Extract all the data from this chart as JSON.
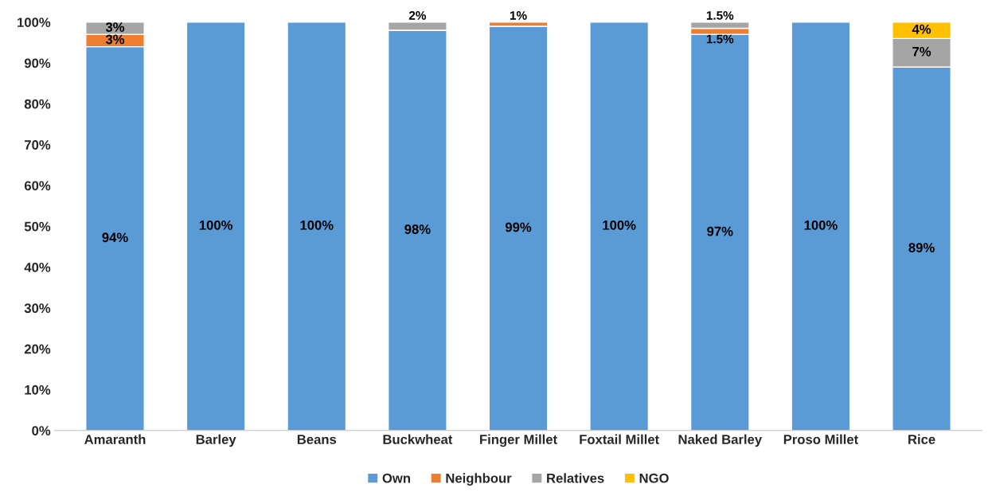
{
  "chart_data": {
    "type": "bar",
    "stacked": true,
    "categories": [
      "Amaranth",
      "Barley",
      "Beans",
      "Buckwheat",
      "Finger Millet",
      "Foxtail Millet",
      "Naked Barley",
      "Proso Millet",
      "Rice"
    ],
    "series": [
      {
        "name": "Own",
        "color": "#5b9bd5",
        "values": [
          94,
          100,
          100,
          98,
          99,
          100,
          97,
          100,
          89
        ],
        "value_labels": [
          "94%",
          "100%",
          "100%",
          "98%",
          "99%",
          "100%",
          "97%",
          "100%",
          "89%"
        ]
      },
      {
        "name": "Neighbour",
        "color": "#ed7d31",
        "values": [
          3,
          null,
          null,
          null,
          1,
          null,
          1.5,
          null,
          null
        ],
        "value_labels": [
          "3%",
          null,
          null,
          null,
          "1%",
          null,
          "1.5%",
          null,
          null
        ]
      },
      {
        "name": "Relatives",
        "color": "#a5a5a5",
        "values": [
          3,
          null,
          null,
          2,
          null,
          null,
          1.5,
          null,
          7
        ],
        "value_labels": [
          "3%",
          null,
          null,
          "2%",
          null,
          null,
          "1.5%",
          null,
          "7%"
        ]
      },
      {
        "name": "NGO",
        "color": "#ffc000",
        "values": [
          null,
          null,
          null,
          null,
          null,
          null,
          null,
          null,
          4
        ],
        "value_labels": [
          null,
          null,
          null,
          null,
          null,
          null,
          null,
          null,
          "4%"
        ]
      }
    ],
    "ylim": [
      0,
      100
    ],
    "yticks": [
      {
        "value": 0,
        "label": "0%"
      },
      {
        "value": 10,
        "label": "10%"
      },
      {
        "value": 20,
        "label": "20%"
      },
      {
        "value": 30,
        "label": "30%"
      },
      {
        "value": 40,
        "label": "40%"
      },
      {
        "value": 50,
        "label": "50%"
      },
      {
        "value": 60,
        "label": "60%"
      },
      {
        "value": 70,
        "label": "70%"
      },
      {
        "value": 80,
        "label": "80%"
      },
      {
        "value": 90,
        "label": "90%"
      },
      {
        "value": 100,
        "label": "100%"
      }
    ],
    "grid": false,
    "legend": "bottom"
  }
}
